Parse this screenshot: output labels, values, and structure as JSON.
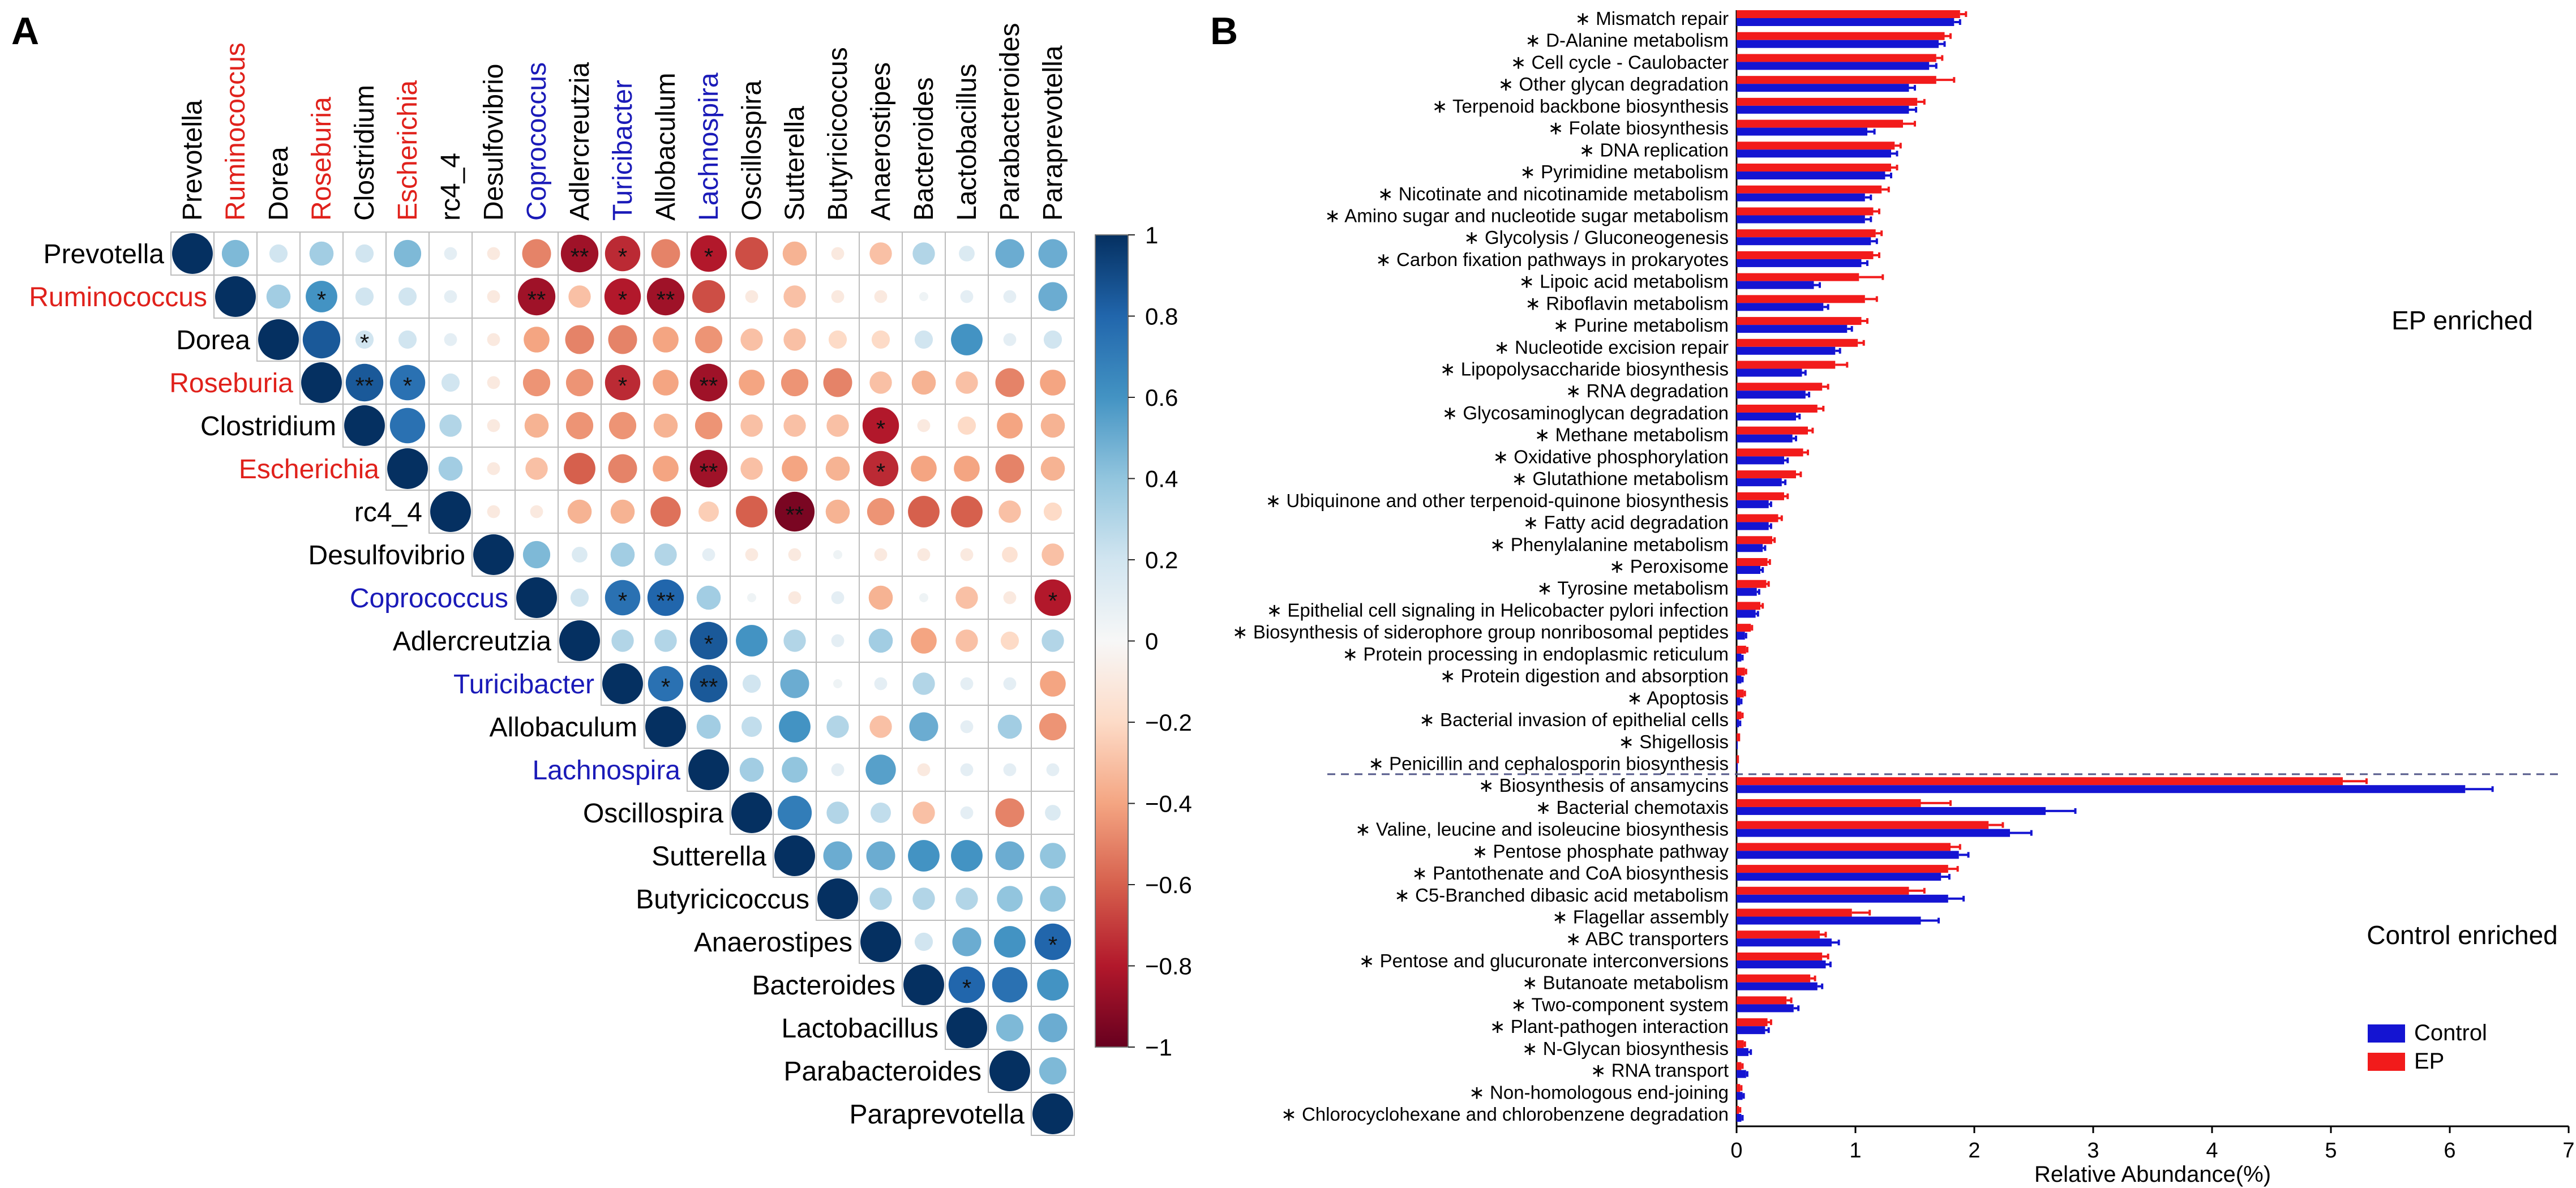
{
  "chart_data": [
    {
      "panel": "A",
      "type": "heatmap",
      "subtype": "correlation-circle-upper-triangle",
      "taxa": [
        {
          "name": "Prevotella",
          "color": "#000000"
        },
        {
          "name": "Ruminococcus",
          "color": "#e0211b"
        },
        {
          "name": "Dorea",
          "color": "#000000"
        },
        {
          "name": "Roseburia",
          "color": "#e0211b"
        },
        {
          "name": "Clostridium",
          "color": "#000000"
        },
        {
          "name": "Escherichia",
          "color": "#e0211b"
        },
        {
          "name": "rc4_4",
          "color": "#000000"
        },
        {
          "name": "Desulfovibrio",
          "color": "#000000"
        },
        {
          "name": "Coprococcus",
          "color": "#1a1ab8"
        },
        {
          "name": "Adlercreutzia",
          "color": "#000000"
        },
        {
          "name": "Turicibacter",
          "color": "#1a1ab8"
        },
        {
          "name": "Allobaculum",
          "color": "#000000"
        },
        {
          "name": "Lachnospira",
          "color": "#1a1ab8"
        },
        {
          "name": "Oscillospira",
          "color": "#000000"
        },
        {
          "name": "Sutterella",
          "color": "#000000"
        },
        {
          "name": "Butyricicoccus",
          "color": "#000000"
        },
        {
          "name": "Anaerostipes",
          "color": "#000000"
        },
        {
          "name": "Bacteroides",
          "color": "#000000"
        },
        {
          "name": "Lactobacillus",
          "color": "#000000"
        },
        {
          "name": "Parabacteroides",
          "color": "#000000"
        },
        {
          "name": "Paraprevotella",
          "color": "#000000"
        }
      ],
      "correlation_matrix_upper": [
        [
          1.0,
          0.45,
          0.2,
          0.35,
          0.2,
          0.45,
          0.1,
          -0.1,
          -0.5,
          -0.85,
          -0.75,
          -0.5,
          -0.8,
          -0.65,
          -0.35,
          -0.1,
          -0.3,
          0.3,
          0.15,
          0.5,
          0.5
        ],
        [
          1.0,
          0.35,
          0.6,
          0.2,
          0.2,
          0.1,
          -0.1,
          -0.85,
          -0.3,
          -0.8,
          -0.85,
          -0.65,
          -0.1,
          -0.3,
          -0.1,
          -0.1,
          0.05,
          0.1,
          0.1,
          0.5
        ],
        [
          1.0,
          0.85,
          0.2,
          0.2,
          0.1,
          -0.1,
          -0.4,
          -0.5,
          -0.5,
          -0.4,
          -0.45,
          -0.3,
          -0.3,
          -0.2,
          -0.2,
          0.2,
          0.6,
          0.1,
          0.2
        ],
        [
          1.0,
          0.85,
          0.75,
          0.2,
          -0.1,
          -0.45,
          -0.45,
          -0.75,
          -0.4,
          -0.85,
          -0.4,
          -0.45,
          -0.5,
          -0.3,
          -0.35,
          -0.3,
          -0.5,
          -0.4
        ],
        [
          1.0,
          0.75,
          0.3,
          -0.1,
          -0.35,
          -0.45,
          -0.45,
          -0.35,
          -0.45,
          -0.3,
          -0.3,
          -0.3,
          -0.8,
          -0.1,
          -0.2,
          -0.4,
          -0.35
        ],
        [
          1.0,
          0.35,
          -0.1,
          -0.3,
          -0.6,
          -0.5,
          -0.4,
          -0.85,
          -0.3,
          -0.4,
          -0.35,
          -0.75,
          -0.4,
          -0.4,
          -0.5,
          -0.35
        ],
        [
          1.0,
          -0.1,
          -0.1,
          -0.35,
          -0.35,
          -0.55,
          -0.25,
          -0.6,
          -0.95,
          -0.35,
          -0.45,
          -0.6,
          -0.6,
          -0.3,
          -0.2
        ],
        [
          1.0,
          0.45,
          0.15,
          0.35,
          0.3,
          0.1,
          -0.1,
          -0.1,
          0.05,
          -0.1,
          -0.1,
          -0.1,
          -0.15,
          -0.3
        ],
        [
          1.0,
          0.2,
          0.75,
          0.8,
          0.35,
          0.05,
          -0.1,
          0.1,
          -0.35,
          0.05,
          -0.3,
          -0.1,
          -0.8
        ],
        [
          1.0,
          0.3,
          0.3,
          0.85,
          0.6,
          0.3,
          0.1,
          0.35,
          -0.4,
          -0.3,
          -0.2,
          0.3
        ],
        [
          1.0,
          0.75,
          0.85,
          0.2,
          0.5,
          0.05,
          0.1,
          0.3,
          0.1,
          0.1,
          -0.4
        ],
        [
          1.0,
          0.35,
          0.25,
          0.6,
          0.3,
          -0.3,
          0.5,
          0.1,
          0.35,
          -0.45
        ],
        [
          1.0,
          0.35,
          0.4,
          0.1,
          0.55,
          -0.1,
          0.1,
          0.1,
          0.1
        ],
        [
          1.0,
          0.7,
          0.3,
          0.25,
          -0.3,
          0.1,
          -0.5,
          0.15
        ],
        [
          1.0,
          0.5,
          0.5,
          0.6,
          0.6,
          0.5,
          0.4
        ],
        [
          1.0,
          0.3,
          0.3,
          0.3,
          0.4,
          0.4
        ],
        [
          1.0,
          0.2,
          0.5,
          0.6,
          0.8
        ],
        [
          1.0,
          0.8,
          0.75,
          0.6
        ],
        [
          1.0,
          0.45,
          0.5
        ],
        [
          1.0,
          0.45
        ],
        [
          1.0
        ]
      ],
      "significance_marks": [
        {
          "row": "Prevotella",
          "col": "Adlercreutzia",
          "mark": "**"
        },
        {
          "row": "Prevotella",
          "col": "Turicibacter",
          "mark": "*"
        },
        {
          "row": "Prevotella",
          "col": "Lachnospira",
          "mark": "*"
        },
        {
          "row": "Ruminococcus",
          "col": "Roseburia",
          "mark": "*"
        },
        {
          "row": "Ruminococcus",
          "col": "Coprococcus",
          "mark": "**"
        },
        {
          "row": "Ruminococcus",
          "col": "Turicibacter",
          "mark": "*"
        },
        {
          "row": "Ruminococcus",
          "col": "Allobaculum",
          "mark": "**"
        },
        {
          "row": "Dorea",
          "col": "Clostridium",
          "mark": "*"
        },
        {
          "row": "Roseburia",
          "col": "Clostridium",
          "mark": "**"
        },
        {
          "row": "Roseburia",
          "col": "Escherichia",
          "mark": "*"
        },
        {
          "row": "Roseburia",
          "col": "Turicibacter",
          "mark": "*"
        },
        {
          "row": "Roseburia",
          "col": "Lachnospira",
          "mark": "**"
        },
        {
          "row": "Clostridium",
          "col": "Anaerostipes",
          "mark": "*"
        },
        {
          "row": "Escherichia",
          "col": "Lachnospira",
          "mark": "**"
        },
        {
          "row": "Escherichia",
          "col": "Anaerostipes",
          "mark": "*"
        },
        {
          "row": "rc4_4",
          "col": "Sutterella",
          "mark": "**"
        },
        {
          "row": "Coprococcus",
          "col": "Turicibacter",
          "mark": "*"
        },
        {
          "row": "Coprococcus",
          "col": "Allobaculum",
          "mark": "**"
        },
        {
          "row": "Coprococcus",
          "col": "Paraprevotella",
          "mark": "*"
        },
        {
          "row": "Adlercreutzia",
          "col": "Lachnospira",
          "mark": "*"
        },
        {
          "row": "Turicibacter",
          "col": "Allobaculum",
          "mark": "*"
        },
        {
          "row": "Turicibacter",
          "col": "Lachnospira",
          "mark": "**"
        },
        {
          "row": "Anaerostipes",
          "col": "Paraprevotella",
          "mark": "*"
        },
        {
          "row": "Bacteroides",
          "col": "Lactobacillus",
          "mark": "*"
        }
      ],
      "colorbar": {
        "range": [
          -1,
          1
        ],
        "ticks": [
          "1",
          "0.8",
          "0.6",
          "0.4",
          "0.2",
          "0",
          "−0.2",
          "−0.4",
          "−0.6",
          "−0.8",
          "−1"
        ],
        "stops": [
          "#67001f",
          "#b2182b",
          "#d6604d",
          "#f4a582",
          "#fddbc7",
          "#f7f7f7",
          "#d1e5f0",
          "#92c5de",
          "#4393c3",
          "#2166ac",
          "#053061"
        ]
      }
    },
    {
      "panel": "B",
      "type": "bar",
      "orientation": "horizontal",
      "xlabel": "Relative Abundance(%)",
      "xlim": [
        0,
        7
      ],
      "xticks": [
        "0",
        "1",
        "2",
        "3",
        "4",
        "5",
        "6",
        "7"
      ],
      "sections": [
        {
          "label": "EP enriched",
          "start": 0,
          "end": 34
        },
        {
          "label": "Control enriched",
          "start": 35,
          "end": 50
        }
      ],
      "categories": [
        "Mismatch repair",
        "D-Alanine metabolism",
        "Cell cycle - Caulobacter",
        "Other glycan degradation",
        "Terpenoid backbone biosynthesis",
        "Folate biosynthesis",
        "DNA replication",
        "Pyrimidine metabolism",
        "Nicotinate and nicotinamide metabolism",
        "Amino sugar and nucleotide sugar metabolism",
        "Glycolysis / Gluconeogenesis",
        "Carbon fixation pathways in prokaryotes",
        "Lipoic acid metabolism",
        "Riboflavin metabolism",
        "Purine metabolism",
        "Nucleotide excision repair",
        "Lipopolysaccharide biosynthesis",
        "RNA degradation",
        "Glycosaminoglycan degradation",
        "Methane metabolism",
        "Oxidative phosphorylation",
        "Glutathione metabolism",
        "Ubiquinone and other terpenoid-quinone biosynthesis",
        "Fatty acid degradation",
        "Phenylalanine metabolism",
        "Peroxisome",
        "Tyrosine metabolism",
        "Epithelial cell signaling in Helicobacter pylori infection",
        "Biosynthesis of siderophore group nonribosomal peptides",
        "Protein processing in endoplasmic reticulum",
        "Protein digestion and absorption",
        "Apoptosis",
        "Bacterial invasion of epithelial cells",
        "Shigellosis",
        "Penicillin and cephalosporin biosynthesis",
        "Biosynthesis of ansamycins",
        "Bacterial chemotaxis",
        "Valine, leucine and isoleucine biosynthesis",
        "Pentose phosphate pathway",
        "Pantothenate and CoA biosynthesis",
        "C5-Branched dibasic acid metabolism",
        "Flagellar assembly",
        "ABC transporters",
        "Pentose and glucuronate interconversions",
        "Butanoate metabolism",
        "Two-component system",
        "Plant-pathogen interaction",
        "N-Glycan biosynthesis",
        "RNA transport",
        "Non-homologous end-joining",
        "Chlorocyclohexane and chlorobenzene degradation"
      ],
      "star_mark": "∗",
      "series": [
        {
          "name": "Control",
          "color": "#1414d2",
          "values": [
            1.83,
            1.7,
            1.62,
            1.45,
            1.45,
            1.1,
            1.3,
            1.25,
            1.08,
            1.08,
            1.13,
            1.05,
            0.65,
            0.73,
            0.93,
            0.83,
            0.55,
            0.58,
            0.5,
            0.47,
            0.4,
            0.38,
            0.27,
            0.27,
            0.22,
            0.2,
            0.17,
            0.16,
            0.07,
            0.04,
            0.04,
            0.03,
            0.02,
            0.01,
            0.01,
            6.13,
            2.6,
            2.3,
            1.87,
            1.72,
            1.78,
            1.55,
            0.8,
            0.75,
            0.68,
            0.48,
            0.24,
            0.1,
            0.08,
            0.05,
            0.04
          ],
          "errors": [
            0.05,
            0.05,
            0.06,
            0.05,
            0.06,
            0.06,
            0.05,
            0.05,
            0.05,
            0.05,
            0.05,
            0.05,
            0.05,
            0.04,
            0.04,
            0.04,
            0.03,
            0.03,
            0.03,
            0.03,
            0.03,
            0.03,
            0.02,
            0.02,
            0.02,
            0.02,
            0.02,
            0.02,
            0.01,
            0.01,
            0.01,
            0.01,
            0.01,
            0.0,
            0.0,
            0.23,
            0.25,
            0.18,
            0.08,
            0.07,
            0.13,
            0.15,
            0.06,
            0.04,
            0.04,
            0.04,
            0.03,
            0.02,
            0.01,
            0.01,
            0.01
          ]
        },
        {
          "name": "EP",
          "color": "#f21b1b",
          "values": [
            1.88,
            1.75,
            1.68,
            1.68,
            1.52,
            1.4,
            1.33,
            1.3,
            1.22,
            1.15,
            1.17,
            1.15,
            1.03,
            1.08,
            1.05,
            1.02,
            0.83,
            0.72,
            0.68,
            0.6,
            0.56,
            0.5,
            0.4,
            0.35,
            0.3,
            0.26,
            0.25,
            0.2,
            0.12,
            0.08,
            0.07,
            0.06,
            0.04,
            0.03,
            0.02,
            5.1,
            1.55,
            2.12,
            1.8,
            1.78,
            1.45,
            0.97,
            0.7,
            0.72,
            0.62,
            0.42,
            0.26,
            0.06,
            0.04,
            0.03,
            0.02
          ],
          "errors": [
            0.05,
            0.05,
            0.05,
            0.15,
            0.06,
            0.1,
            0.05,
            0.05,
            0.06,
            0.05,
            0.05,
            0.05,
            0.2,
            0.1,
            0.05,
            0.05,
            0.1,
            0.05,
            0.05,
            0.04,
            0.04,
            0.04,
            0.03,
            0.03,
            0.02,
            0.02,
            0.02,
            0.02,
            0.01,
            0.01,
            0.01,
            0.01,
            0.01,
            0.0,
            0.0,
            0.2,
            0.25,
            0.12,
            0.08,
            0.08,
            0.13,
            0.15,
            0.05,
            0.05,
            0.04,
            0.04,
            0.03,
            0.01,
            0.01,
            0.01,
            0.01
          ]
        }
      ],
      "legend": {
        "position": "bottom-right",
        "entries": [
          "Control",
          "EP"
        ]
      }
    }
  ],
  "panel_labels": {
    "a": "A",
    "b": "B"
  }
}
